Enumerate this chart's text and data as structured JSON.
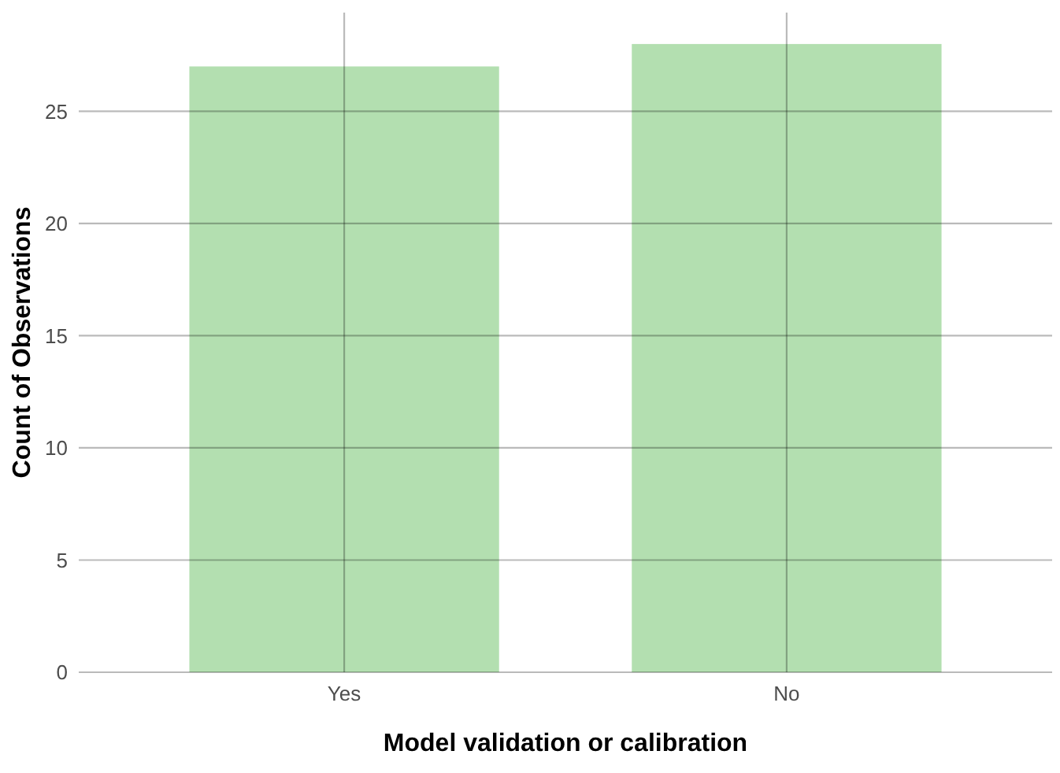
{
  "chart_data": {
    "type": "bar",
    "xlabel": "Model validation or calibration",
    "ylabel": "Count of Observations",
    "categories": [
      "Yes",
      "No"
    ],
    "values": [
      27,
      28
    ],
    "color": "#b3dfb0",
    "ylim": [
      0,
      29.4
    ],
    "yticks": [
      0,
      5,
      10,
      15,
      20,
      25
    ],
    "grid": true
  }
}
